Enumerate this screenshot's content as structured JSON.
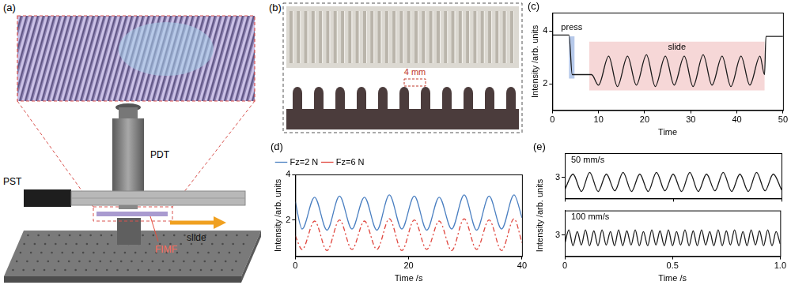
{
  "diagrams": {
    "a": {
      "label": "(a)",
      "pdt": "PDT",
      "pst": "PST",
      "slide": "slide",
      "fimf": "FIMF"
    },
    "b": {
      "label": "(b)",
      "pitch": "4 mm"
    }
  },
  "chart_data": [
    {
      "type": "line",
      "panel": "(c)",
      "xlabel": "Time",
      "ylabel": "Intensity /arb. units",
      "xlim": [
        0,
        50
      ],
      "xticks": [
        0,
        10,
        20,
        30,
        40,
        50
      ],
      "ylim": [
        1,
        4.7
      ],
      "yticks": [
        2,
        4
      ],
      "grid": false,
      "color": "#1a1a1a",
      "x": [
        0,
        3.6,
        4.3,
        8.5,
        10.0,
        12.2,
        14.1,
        16.3,
        18.2,
        20.4,
        22.3,
        24.5,
        26.4,
        28.6,
        30.5,
        32.7,
        34.6,
        36.8,
        38.7,
        40.9,
        42.8,
        45.0,
        46.0,
        46.3,
        50
      ],
      "values": [
        3.85,
        3.85,
        2.35,
        2.35,
        1.95,
        3.05,
        1.9,
        3.05,
        1.95,
        3.1,
        1.9,
        3.05,
        1.95,
        3.05,
        1.9,
        3.1,
        1.95,
        3.05,
        1.9,
        3.05,
        1.95,
        3.05,
        2.35,
        3.8,
        3.8
      ],
      "spans": [
        {
          "text": "press",
          "x": [
            3.6,
            4.8
          ],
          "y": [
            2.2,
            3.8
          ],
          "color": "#a9bfe6"
        },
        {
          "text": "slide",
          "x": [
            8,
            46
          ],
          "y": [
            1.75,
            3.6
          ],
          "color": "#f5d0d0"
        }
      ]
    },
    {
      "type": "line",
      "panel": "(d)",
      "xlabel": "Time /s",
      "ylabel": "Intensity /arb. units",
      "xlim": [
        0,
        40
      ],
      "xticks": [
        0,
        20,
        40
      ],
      "ylim": [
        0.4,
        4
      ],
      "yticks": [
        2,
        4
      ],
      "grid": false,
      "legend": "upper left",
      "x": [
        0,
        1.2,
        3.4,
        5.6,
        7.8,
        10.0,
        12.2,
        14.4,
        16.6,
        18.8,
        21.0,
        23.2,
        25.4,
        27.6,
        29.8,
        32.0,
        34.2,
        36.4,
        38.6,
        40
      ],
      "series": [
        {
          "name": "Fz=2 N",
          "color": "#4a7fc1",
          "line_style": "solid",
          "values": [
            2.8,
            1.6,
            3.0,
            1.55,
            3.05,
            1.6,
            3.0,
            1.55,
            3.1,
            1.6,
            3.05,
            1.55,
            3.0,
            1.6,
            3.1,
            1.55,
            3.05,
            1.6,
            3.1,
            2.1
          ]
        },
        {
          "name": "Fz=6 N",
          "color": "#e0473f",
          "line_style": "dashdot",
          "values": [
            1.3,
            0.7,
            1.95,
            0.65,
            2.0,
            0.7,
            1.95,
            0.7,
            2.05,
            0.65,
            2.0,
            0.7,
            1.95,
            0.65,
            2.05,
            0.7,
            2.0,
            0.65,
            2.05,
            1.0
          ]
        }
      ]
    },
    {
      "type": "line",
      "panel": "(e)",
      "annotation": "50 mm/s",
      "tick_labels": "y",
      "xlim": [
        0,
        1
      ],
      "xticks": [
        0,
        0.5,
        {
          "value": 1,
          "label": "1.0"
        }
      ],
      "ylim": [
        2.4,
        3.7
      ],
      "yticks": [
        3
      ],
      "grid": false,
      "color": "#1a1a1a",
      "x": [
        0,
        0.038,
        0.077,
        0.115,
        0.154,
        0.192,
        0.231,
        0.269,
        0.308,
        0.346,
        0.385,
        0.423,
        0.462,
        0.5,
        0.539,
        0.577,
        0.616,
        0.654,
        0.693,
        0.731,
        0.77,
        0.808,
        0.847,
        0.885,
        0.924,
        0.962,
        1.0
      ],
      "values": [
        2.65,
        3.1,
        2.6,
        3.15,
        2.6,
        3.1,
        2.62,
        3.15,
        2.6,
        3.1,
        2.6,
        3.15,
        2.62,
        3.1,
        2.6,
        3.15,
        2.6,
        3.1,
        2.62,
        3.15,
        2.6,
        3.1,
        2.6,
        3.15,
        2.62,
        3.1,
        2.65
      ]
    },
    {
      "type": "line",
      "annotation": "100 mm/s",
      "xlabel": "Time /s",
      "ylabel": "Intensity /arb. units",
      "xlim": [
        0,
        1
      ],
      "xticks": [
        0,
        0.5,
        {
          "value": 1,
          "label": "1.0"
        }
      ],
      "ylim": [
        2.4,
        3.7
      ],
      "yticks": [
        3
      ],
      "grid": false,
      "color": "#1a1a1a",
      "x": [
        0,
        0.019,
        0.038,
        0.058,
        0.077,
        0.096,
        0.115,
        0.135,
        0.154,
        0.173,
        0.192,
        0.212,
        0.231,
        0.25,
        0.269,
        0.288,
        0.308,
        0.327,
        0.346,
        0.365,
        0.385,
        0.404,
        0.423,
        0.442,
        0.462,
        0.481,
        0.5,
        0.519,
        0.538,
        0.558,
        0.577,
        0.596,
        0.615,
        0.635,
        0.654,
        0.673,
        0.692,
        0.712,
        0.731,
        0.75,
        0.769,
        0.788,
        0.808,
        0.827,
        0.846,
        0.865,
        0.885,
        0.904,
        0.923,
        0.942,
        0.962,
        0.981,
        1.0
      ],
      "values": [
        2.75,
        3.15,
        2.7,
        3.1,
        2.72,
        3.15,
        2.7,
        3.12,
        2.7,
        3.15,
        2.72,
        3.1,
        2.7,
        3.15,
        2.7,
        3.12,
        2.72,
        3.15,
        2.7,
        3.1,
        2.7,
        3.15,
        2.72,
        3.12,
        2.7,
        3.15,
        2.7,
        3.1,
        2.72,
        3.15,
        2.7,
        3.12,
        2.7,
        3.15,
        2.72,
        3.1,
        2.7,
        3.15,
        2.7,
        3.12,
        2.72,
        3.15,
        2.7,
        3.1,
        2.7,
        3.15,
        2.72,
        3.12,
        2.7,
        3.15,
        2.7,
        3.1,
        2.75
      ]
    }
  ]
}
